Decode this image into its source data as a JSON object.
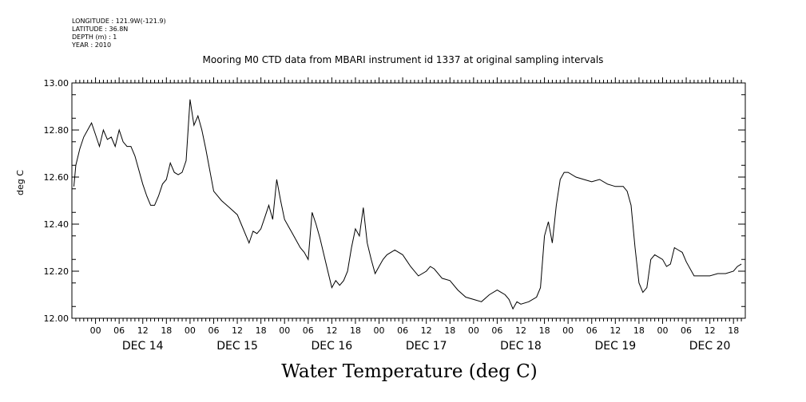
{
  "header": {
    "longitude": "LONGITUDE : 121.9W(-121.9)",
    "latitude": "LATITUDE : 36.8N",
    "depth": "DEPTH (m) : 1",
    "year": "YEAR : 2010"
  },
  "chart_data": {
    "type": "line",
    "title": "Mooring M0 CTD data from MBARI instrument id 1337 at original sampling intervals",
    "xlabel": "Water Temperature (deg C)",
    "ylabel": "deg C",
    "ylim": [
      12.0,
      13.0
    ],
    "yticks": [
      "12.00",
      "12.20",
      "12.40",
      "12.60",
      "12.80",
      "13.00"
    ],
    "xlim": [
      "2010-12-13T18:00",
      "2010-12-20T21:00"
    ],
    "hour_ticks": [
      "00",
      "06",
      "12",
      "18"
    ],
    "day_labels": [
      "DEC 14",
      "DEC 15",
      "DEC 16",
      "DEC 17",
      "DEC 18",
      "DEC 19",
      "DEC 20"
    ],
    "grid": false,
    "series": [
      {
        "x": [
          "2010-12-13T18:30",
          "2010-12-13T19:00",
          "2010-12-13T20:00",
          "2010-12-13T21:00",
          "2010-12-13T22:00",
          "2010-12-13T23:00",
          "2010-12-14T00:00",
          "2010-12-14T01:00",
          "2010-12-14T02:00",
          "2010-12-14T03:00",
          "2010-12-14T04:00",
          "2010-12-14T05:00",
          "2010-12-14T06:00",
          "2010-12-14T07:00",
          "2010-12-14T08:00",
          "2010-12-14T09:00",
          "2010-12-14T10:00",
          "2010-12-14T11:00",
          "2010-12-14T12:00",
          "2010-12-14T13:00",
          "2010-12-14T14:00",
          "2010-12-14T15:00",
          "2010-12-14T16:00",
          "2010-12-14T17:00",
          "2010-12-14T18:00",
          "2010-12-14T19:00",
          "2010-12-14T20:00",
          "2010-12-14T21:00",
          "2010-12-14T22:00",
          "2010-12-14T23:00",
          "2010-12-15T00:00",
          "2010-12-15T01:00",
          "2010-12-15T02:00",
          "2010-12-15T03:00",
          "2010-12-15T04:00",
          "2010-12-15T06:00",
          "2010-12-15T08:00",
          "2010-12-15T10:00",
          "2010-12-15T12:00",
          "2010-12-15T13:00",
          "2010-12-15T14:00",
          "2010-12-15T15:00",
          "2010-12-15T16:00",
          "2010-12-15T17:00",
          "2010-12-15T18:00",
          "2010-12-15T19:00",
          "2010-12-15T20:00",
          "2010-12-15T21:00",
          "2010-12-15T22:00",
          "2010-12-15T23:00",
          "2010-12-16T00:00",
          "2010-12-16T01:00",
          "2010-12-16T02:00",
          "2010-12-16T03:00",
          "2010-12-16T04:00",
          "2010-12-16T05:00",
          "2010-12-16T06:00",
          "2010-12-16T07:00",
          "2010-12-16T08:00",
          "2010-12-16T09:00",
          "2010-12-16T10:00",
          "2010-12-16T11:00",
          "2010-12-16T12:00",
          "2010-12-16T13:00",
          "2010-12-16T14:00",
          "2010-12-16T15:00",
          "2010-12-16T16:00",
          "2010-12-16T17:00",
          "2010-12-16T18:00",
          "2010-12-16T19:00",
          "2010-12-16T20:00",
          "2010-12-16T21:00",
          "2010-12-16T22:00",
          "2010-12-16T23:00",
          "2010-12-17T00:00",
          "2010-12-17T01:00",
          "2010-12-17T02:00",
          "2010-12-17T03:00",
          "2010-12-17T04:00",
          "2010-12-17T06:00",
          "2010-12-17T08:00",
          "2010-12-17T10:00",
          "2010-12-17T12:00",
          "2010-12-17T13:00",
          "2010-12-17T14:00",
          "2010-12-17T16:00",
          "2010-12-17T18:00",
          "2010-12-17T20:00",
          "2010-12-17T22:00",
          "2010-12-18T00:00",
          "2010-12-18T02:00",
          "2010-12-18T04:00",
          "2010-12-18T06:00",
          "2010-12-18T07:00",
          "2010-12-18T08:00",
          "2010-12-18T09:00",
          "2010-12-18T10:00",
          "2010-12-18T11:00",
          "2010-12-18T12:00",
          "2010-12-18T14:00",
          "2010-12-18T16:00",
          "2010-12-18T17:00",
          "2010-12-18T18:00",
          "2010-12-18T19:00",
          "2010-12-18T20:00",
          "2010-12-18T21:00",
          "2010-12-18T22:00",
          "2010-12-18T23:00",
          "2010-12-19T00:00",
          "2010-12-19T02:00",
          "2010-12-19T04:00",
          "2010-12-19T06:00",
          "2010-12-19T08:00",
          "2010-12-19T10:00",
          "2010-12-19T12:00",
          "2010-12-19T14:00",
          "2010-12-19T15:00",
          "2010-12-19T16:00",
          "2010-12-19T17:00",
          "2010-12-19T18:00",
          "2010-12-19T19:00",
          "2010-12-19T20:00",
          "2010-12-19T21:00",
          "2010-12-19T22:00",
          "2010-12-19T23:00",
          "2010-12-20T00:00",
          "2010-12-20T01:00",
          "2010-12-20T02:00",
          "2010-12-20T03:00",
          "2010-12-20T04:00",
          "2010-12-20T05:00",
          "2010-12-20T06:00",
          "2010-12-20T08:00",
          "2010-12-20T10:00",
          "2010-12-20T12:00",
          "2010-12-20T14:00",
          "2010-12-20T16:00",
          "2010-12-20T18:00",
          "2010-12-20T19:00",
          "2010-12-20T20:00"
        ],
        "values": [
          12.56,
          12.65,
          12.72,
          12.77,
          12.8,
          12.83,
          12.78,
          12.73,
          12.8,
          12.76,
          12.77,
          12.73,
          12.8,
          12.75,
          12.73,
          12.73,
          12.69,
          12.63,
          12.57,
          12.52,
          12.48,
          12.48,
          12.52,
          12.57,
          12.59,
          12.66,
          12.62,
          12.61,
          12.62,
          12.67,
          12.93,
          12.82,
          12.86,
          12.8,
          12.72,
          12.54,
          12.5,
          12.47,
          12.44,
          12.4,
          12.36,
          12.32,
          12.37,
          12.36,
          12.38,
          12.43,
          12.48,
          12.42,
          12.59,
          12.5,
          12.42,
          12.39,
          12.36,
          12.33,
          12.3,
          12.28,
          12.25,
          12.45,
          12.4,
          12.34,
          12.27,
          12.2,
          12.13,
          12.16,
          12.14,
          12.16,
          12.2,
          12.3,
          12.38,
          12.35,
          12.47,
          12.32,
          12.25,
          12.19,
          12.22,
          12.25,
          12.27,
          12.28,
          12.29,
          12.27,
          12.22,
          12.18,
          12.2,
          12.22,
          12.21,
          12.17,
          12.16,
          12.12,
          12.09,
          12.08,
          12.07,
          12.1,
          12.12,
          12.11,
          12.1,
          12.08,
          12.04,
          12.07,
          12.06,
          12.07,
          12.09,
          12.13,
          12.35,
          12.41,
          12.32,
          12.48,
          12.59,
          12.62,
          12.62,
          12.6,
          12.59,
          12.58,
          12.59,
          12.57,
          12.56,
          12.56,
          12.54,
          12.48,
          12.3,
          12.15,
          12.11,
          12.13,
          12.25,
          12.27,
          12.26,
          12.25,
          12.22,
          12.23,
          12.3,
          12.29,
          12.28,
          12.24,
          12.18,
          12.18,
          12.18,
          12.19,
          12.19,
          12.2,
          12.22,
          12.23
        ]
      }
    ]
  }
}
